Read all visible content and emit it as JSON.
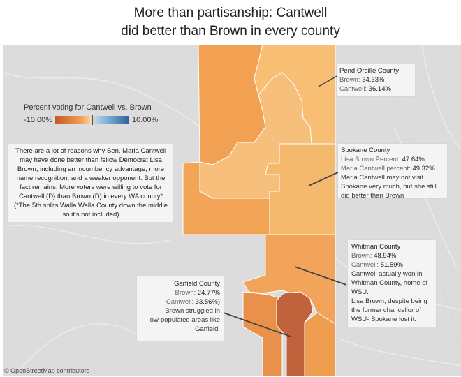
{
  "title": {
    "line1": "More than partisanship:  Cantwell",
    "line2": "did better than Brown in every county"
  },
  "legend": {
    "title": "Percent voting for Cantwell vs. Brown",
    "min_label": "-10.00%",
    "max_label": "10.00%",
    "color_low": "#c55a28",
    "color_mid": "#f5d6a8",
    "color_high": "#2d5f9a"
  },
  "note": {
    "text": "There are a lot of reasons why Sen. Maria Cantwell may have done better than fellow Democrat Lisa Brown, including an incumbency advantage, more name recognition, and a weaker opponent. But the fact remains: More voters were willing to vote for Cantwell (D)  than Brown (D) in every WA county*",
    "footnote": "(*The 5th splits Walla Walla County down the middle so it's not included)"
  },
  "counties": {
    "pend_oreille": {
      "name": " Pend Oreille County",
      "brown_label": "Brown: ",
      "brown_value": "34.33%",
      "cantwell_label": "Cantwell: ",
      "cantwell_value": "36.14%"
    },
    "spokane": {
      "name": "Spokane County",
      "brown_label": "Lisa Brown Percent: ",
      "brown_value": "47.64%",
      "cantwell_label": "Maria Cantwell percent: ",
      "cantwell_value": "49.32%",
      "comment1": "Maria Cantwell may not visit",
      "comment2": "Spokane very much, but she still",
      "comment3": "did better than Brown"
    },
    "whitman": {
      "name": " Whitman County",
      "brown_label": "Brown: ",
      "brown_value": "48.94%",
      "cantwell_label": "Cantwell: ",
      "cantwell_value": "51.59%",
      "comment1": "Cantwell actually won in",
      "comment2": "Whitman County, home of",
      "comment3": "WSU.",
      "comment4": "Lisa Brown, despite being",
      "comment5": "the former chancellor of",
      "comment6": "WSU- Spokane lost it."
    },
    "garfield": {
      "name": "Garfield County",
      "brown_label": "Brown: ",
      "brown_value": "24.77%",
      "cantwell_label": "Cantwell:  ",
      "cantwell_value": "33.56%)",
      "comment1": "Brown struggled in",
      "comment2": "low-populated areas like",
      "comment3": "Garfield."
    }
  },
  "credit": "© OpenStreetMap contributors"
}
